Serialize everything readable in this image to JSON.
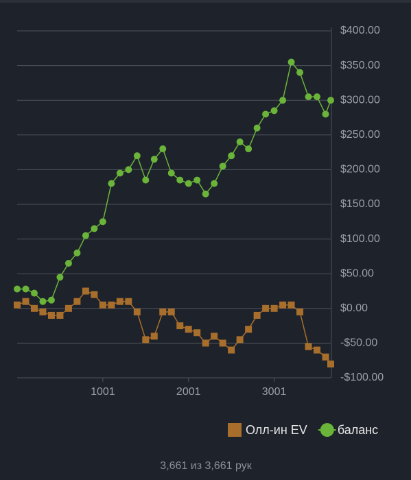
{
  "chart_data": {
    "type": "line",
    "x": [
      1,
      101,
      201,
      301,
      401,
      501,
      601,
      701,
      801,
      901,
      1001,
      1101,
      1201,
      1301,
      1401,
      1501,
      1601,
      1701,
      1801,
      1901,
      2001,
      2101,
      2201,
      2301,
      2401,
      2501,
      2601,
      2701,
      2801,
      2901,
      3001,
      3101,
      3201,
      3301,
      3401,
      3501,
      3601,
      3661
    ],
    "series": [
      {
        "name": "Олл-ин EV",
        "color": "#a86e2c",
        "marker": "square",
        "values": [
          5,
          10,
          0,
          -5,
          -10,
          -10,
          0,
          10,
          25,
          20,
          5,
          5,
          10,
          10,
          -5,
          -45,
          -40,
          -5,
          -5,
          -25,
          -30,
          -35,
          -50,
          -40,
          -50,
          -60,
          -45,
          -30,
          -10,
          0,
          0,
          5,
          5,
          -5,
          -55,
          -60,
          -70,
          -80
        ]
      },
      {
        "name": "баланс",
        "color": "#6ab43a",
        "marker": "circle",
        "values": [
          28,
          28,
          22,
          10,
          12,
          45,
          65,
          80,
          105,
          115,
          125,
          180,
          195,
          200,
          220,
          185,
          215,
          230,
          195,
          185,
          180,
          185,
          165,
          180,
          205,
          220,
          240,
          230,
          260,
          280,
          285,
          300,
          355,
          340,
          305,
          305,
          280,
          300
        ]
      }
    ],
    "xlim": [
      1,
      3661
    ],
    "xticks": [
      1001,
      2001,
      3001
    ],
    "ylim": [
      -100,
      400
    ],
    "yticks": [
      {
        "value": -100,
        "label": "-$100.00"
      },
      {
        "value": -50,
        "label": "-$50.00"
      },
      {
        "value": 0,
        "label": "$0.00"
      },
      {
        "value": 50,
        "label": "$50.00"
      },
      {
        "value": 100,
        "label": "$100.00"
      },
      {
        "value": 150,
        "label": "$150.00"
      },
      {
        "value": 200,
        "label": "$200.00"
      },
      {
        "value": 250,
        "label": "$250.00"
      },
      {
        "value": 300,
        "label": "$300.00"
      },
      {
        "value": 350,
        "label": "$350.00"
      },
      {
        "value": 400,
        "label": "$400.00"
      }
    ],
    "grid": true,
    "footer": "3,661 из 3,661 рук"
  }
}
